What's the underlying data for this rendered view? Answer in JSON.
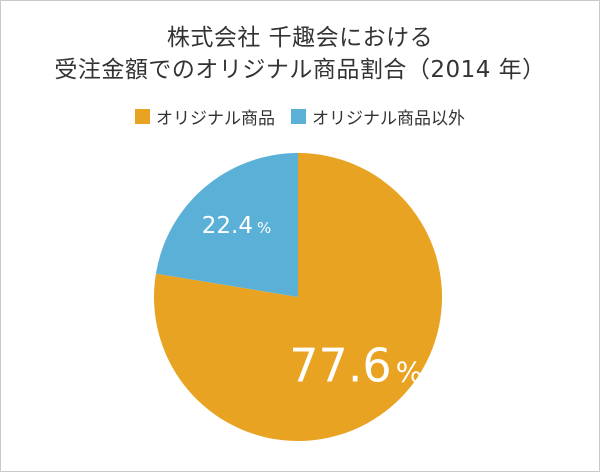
{
  "chart_data": {
    "type": "pie",
    "title_lines": [
      "株式会社 千趣会における",
      "受注金額でのオリジナル商品割合（2014 年）"
    ],
    "legend_position": "top",
    "slices": [
      {
        "name": "オリジナル商品",
        "value": 77.6,
        "color": "#e9a322",
        "label_value": "77.6",
        "label_unit": "%"
      },
      {
        "name": "オリジナル商品以外",
        "value": 22.4,
        "color": "#5ab0d6",
        "label_value": "22.4",
        "label_unit": "%"
      }
    ]
  }
}
